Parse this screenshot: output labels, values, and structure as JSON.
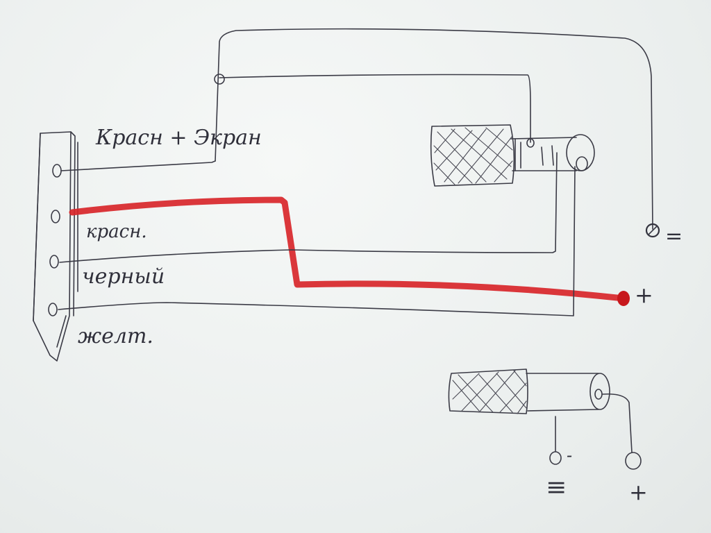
{
  "connector": {
    "pins": [
      {
        "name": "pin-1"
      },
      {
        "name": "pin-2"
      },
      {
        "name": "pin-3"
      },
      {
        "name": "pin-4"
      }
    ]
  },
  "labels": {
    "red_screen": "Красн + Экран",
    "red": "красн.",
    "black": "черный",
    "yellow": "желт."
  },
  "terminals": {
    "top_minus": "=",
    "top_plus": "+",
    "bottom_minus": "-",
    "bottom_ground": "≡",
    "bottom_plus": "+"
  },
  "colors": {
    "ink": "#3a3a45",
    "red_wire": "#d8262a",
    "paper": "#eef1f0"
  }
}
